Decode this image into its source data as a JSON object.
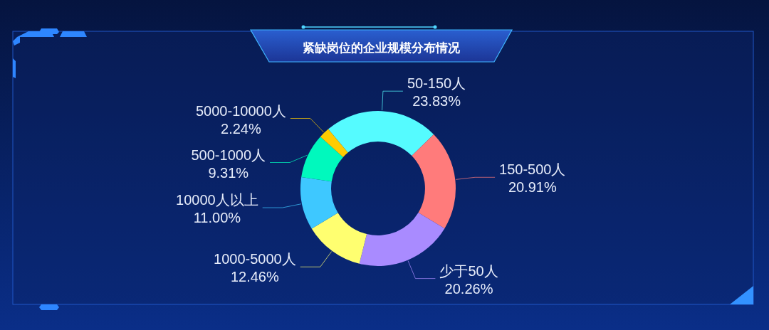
{
  "chart_data": {
    "type": "donut",
    "title": "紧缺岗位的企业规模分布情况",
    "categories": [
      "50-150人",
      "150-500人",
      "少于50人",
      "1000-5000人",
      "10000人以上",
      "500-1000人",
      "5000-10000人"
    ],
    "values": [
      23.83,
      20.91,
      20.26,
      12.46,
      11.0,
      9.31,
      2.24
    ],
    "value_labels": [
      "23.83%",
      "20.91%",
      "20.26%",
      "12.46%",
      "11.00%",
      "9.31%",
      "2.24%"
    ],
    "colors": [
      "#55fbff",
      "#ff7b7b",
      "#a98bff",
      "#ffff70",
      "#3ec8ff",
      "#00f9bd",
      "#ffcc00"
    ]
  }
}
